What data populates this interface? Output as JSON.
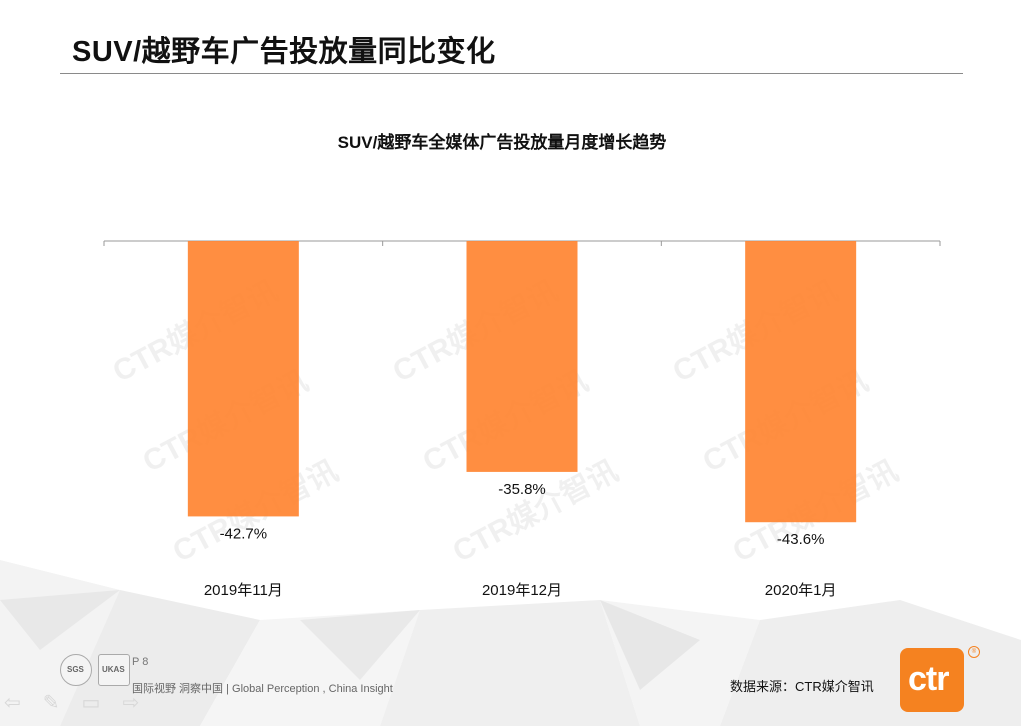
{
  "page_title": "SUV/越野车广告投放量同比变化",
  "chart_data": {
    "type": "bar",
    "title": "SUV/越野车全媒体广告投放量月度增长趋势",
    "categories": [
      "2019年11月",
      "2019年12月",
      "2020年1月"
    ],
    "values": [
      -42.7,
      -35.8,
      -43.6
    ],
    "value_labels": [
      "-42.7%",
      "-35.8%",
      "-43.6%"
    ],
    "ylim": [
      -45,
      0
    ],
    "grid": false,
    "bar_color": "#ff8533",
    "watermark": "CTR媒介智讯"
  },
  "footer": {
    "page": "P 8",
    "tagline": "国际视野  洞察中国 |   Global  Perception , China   Insight",
    "source": "数据来源：CTR媒介智讯",
    "logo_text": "ctr",
    "nav_icons": [
      "back-arrow-icon",
      "pen-icon",
      "menu-icon",
      "forward-arrow-icon"
    ]
  },
  "colors": {
    "accent": "#f58220",
    "bar": "#ff8533"
  }
}
